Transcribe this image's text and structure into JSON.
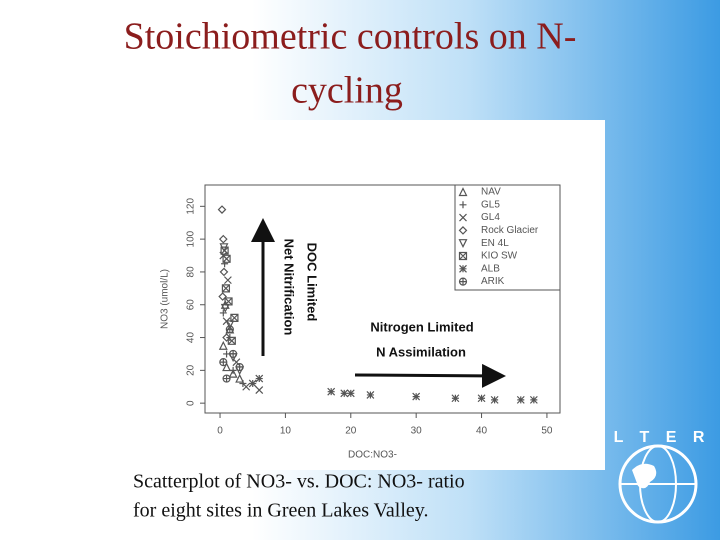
{
  "slide": {
    "title_lines": [
      "Stoichiometric controls on N-",
      "cycling"
    ],
    "caption_lines": [
      "Scatterplot of NO3-  vs. DOC: NO3- ratio",
      "for eight sites in Green Lakes Valley."
    ],
    "logo": "L T E R"
  },
  "chart_data": {
    "type": "scatter",
    "x_label": "DOC:NO3-",
    "y_label": "NO3 (umol/L)",
    "xlim": [
      -2.3,
      52
    ],
    "xticks": [
      0,
      10,
      20,
      30,
      40,
      50
    ],
    "ylim": [
      -6,
      133
    ],
    "yticks": [
      0,
      20,
      40,
      60,
      80,
      100,
      120
    ],
    "legend": "top-right",
    "annotations": [
      "DOC Limited",
      "Net Nitrification",
      "Nitrogen Limited",
      "N Assimilation"
    ],
    "series": [
      {
        "name": "NAV",
        "marker": "triangle",
        "color": "#555555",
        "x": [
          0.5,
          1,
          1.5,
          2,
          3,
          0.8
        ],
        "values": [
          35,
          22,
          45,
          18,
          15,
          60
        ]
      },
      {
        "name": "GL5",
        "marker": "plus",
        "color": "#555555",
        "x": [
          1,
          0.5,
          2,
          1.5,
          3.5,
          0.7
        ],
        "values": [
          30,
          55,
          20,
          40,
          12,
          85
        ]
      },
      {
        "name": "GL4",
        "marker": "cross",
        "color": "#555555",
        "x": [
          0.5,
          1.2,
          2.5,
          4,
          6,
          1
        ],
        "values": [
          90,
          75,
          25,
          10,
          8,
          50
        ]
      },
      {
        "name": "Rock Glacier",
        "marker": "diamond",
        "color": "#555555",
        "x": [
          0.3,
          0.5,
          0.6,
          0.4,
          1
        ],
        "values": [
          118,
          100,
          80,
          65,
          40
        ]
      },
      {
        "name": "EN 4L",
        "marker": "invtriangle",
        "color": "#555555",
        "x": [
          0.8,
          1.5,
          2,
          0.6,
          3
        ],
        "values": [
          58,
          48,
          28,
          95,
          20
        ]
      },
      {
        "name": "KIO SW",
        "marker": "boxcross",
        "color": "#555555",
        "x": [
          0.7,
          1,
          0.9,
          1.3,
          2.2,
          1.8
        ],
        "values": [
          93,
          88,
          70,
          62,
          52,
          38
        ]
      },
      {
        "name": "ALB",
        "marker": "asterisk",
        "color": "#555555",
        "x": [
          5,
          6,
          17,
          19,
          20,
          23,
          30,
          36,
          40,
          42,
          46,
          48
        ],
        "values": [
          12,
          15,
          7,
          6,
          6,
          5,
          4,
          3,
          3,
          2,
          2,
          2
        ]
      },
      {
        "name": "ARIK",
        "marker": "circleplus",
        "color": "#555555",
        "x": [
          0.5,
          1,
          2,
          3,
          1.5
        ],
        "values": [
          25,
          15,
          30,
          22,
          45
        ]
      }
    ]
  }
}
